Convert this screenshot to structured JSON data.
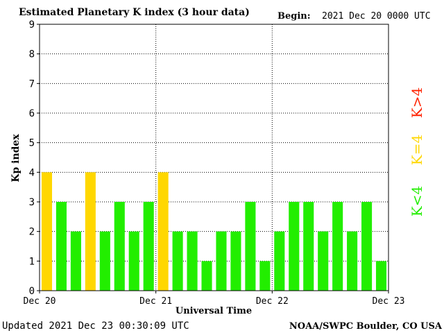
{
  "header": {
    "title": "Estimated Planetary K index (3 hour data)",
    "begin_label": "Begin:",
    "begin_value": "2021 Dec 20 0000 UTC"
  },
  "footer": {
    "updated": "Updated 2021 Dec 23 00:30:09 UTC",
    "source": "NOAA/SWPC Boulder, CO USA"
  },
  "legend": {
    "items": [
      {
        "label": "K>4",
        "color": "#ff2200"
      },
      {
        "label": "K=4",
        "color": "#ffd700"
      },
      {
        "label": "K<4",
        "color": "#22ee00"
      }
    ]
  },
  "chart_data": {
    "type": "bar",
    "title": "Estimated Planetary K index (3 hour data)",
    "xlabel": "Universal Time",
    "ylabel": "Kp index",
    "ylim": [
      0,
      9
    ],
    "yticks": [
      0,
      1,
      2,
      3,
      4,
      5,
      6,
      7,
      8,
      9
    ],
    "xlim_days": [
      0,
      3
    ],
    "xticks": [
      {
        "day": 0,
        "label": "Dec 20"
      },
      {
        "day": 1,
        "label": "Dec 21"
      },
      {
        "day": 2,
        "label": "Dec 22"
      },
      {
        "day": 3,
        "label": "Dec 23"
      }
    ],
    "grid": true,
    "bar_interval_hours": 3,
    "values": [
      4,
      3,
      2,
      4,
      2,
      3,
      2,
      3,
      4,
      2,
      2,
      1,
      2,
      2,
      3,
      1,
      2,
      3,
      3,
      2,
      3,
      2,
      3,
      1
    ],
    "colors": {
      "below4": "#22ee00",
      "equal4": "#ffd700",
      "above4": "#ff2200"
    }
  }
}
